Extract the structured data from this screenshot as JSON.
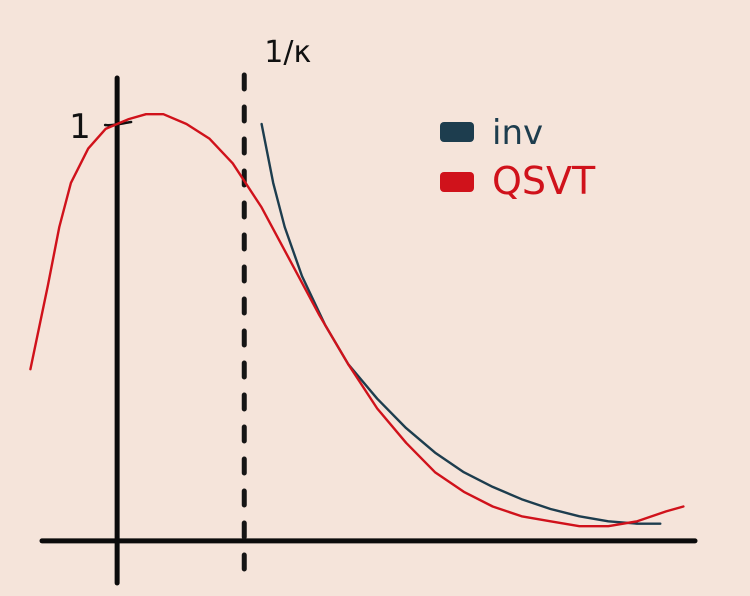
{
  "chart_data": {
    "type": "line",
    "title": "",
    "xlabel": "",
    "ylabel": "",
    "xlim": [
      -0.13,
      1.0
    ],
    "ylim": [
      -0.09,
      0.95
    ],
    "grid": false,
    "legend_position": "top-right",
    "y_tick_label": "1",
    "y_tick_value": 0.85,
    "vertical_marker": {
      "label": "1/κ",
      "x": 0.22
    },
    "series": [
      {
        "name": "inv",
        "color": "#1d3d4e",
        "x": [
          0.25,
          0.27,
          0.29,
          0.32,
          0.36,
          0.4,
          0.45,
          0.5,
          0.55,
          0.6,
          0.65,
          0.7,
          0.75,
          0.8,
          0.85,
          0.9,
          0.94
        ],
        "y": [
          0.85,
          0.73,
          0.64,
          0.54,
          0.44,
          0.36,
          0.29,
          0.23,
          0.18,
          0.14,
          0.11,
          0.085,
          0.065,
          0.05,
          0.04,
          0.035,
          0.035
        ]
      },
      {
        "name": "QSVT",
        "color": "#d0121b",
        "x": [
          -0.15,
          -0.12,
          -0.1,
          -0.08,
          -0.05,
          -0.02,
          0.0,
          0.02,
          0.05,
          0.08,
          0.12,
          0.16,
          0.2,
          0.25,
          0.3,
          0.35,
          0.4,
          0.45,
          0.5,
          0.55,
          0.6,
          0.65,
          0.7,
          0.75,
          0.8,
          0.85,
          0.9,
          0.95,
          0.98
        ],
        "y": [
          0.35,
          0.52,
          0.64,
          0.73,
          0.8,
          0.84,
          0.85,
          0.86,
          0.87,
          0.87,
          0.85,
          0.82,
          0.77,
          0.68,
          0.57,
          0.46,
          0.36,
          0.27,
          0.2,
          0.14,
          0.1,
          0.07,
          0.05,
          0.04,
          0.03,
          0.03,
          0.04,
          0.06,
          0.07
        ]
      }
    ]
  }
}
